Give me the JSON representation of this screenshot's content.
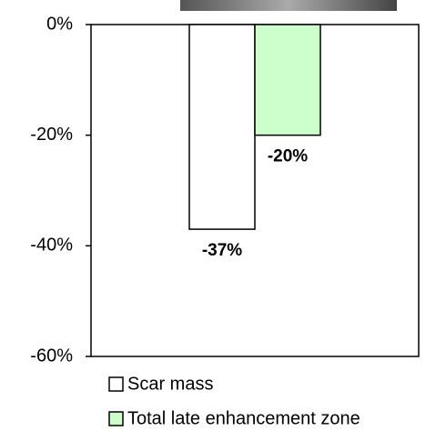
{
  "chart_data": {
    "type": "bar",
    "categories": [
      null
    ],
    "series": [
      {
        "name": "Scar mass",
        "color": "#ffffff",
        "values": [
          -37
        ],
        "value_labels": [
          "-37%"
        ]
      },
      {
        "name": "Total late enhancement zone",
        "color": "#ccffcc",
        "values": [
          -20
        ],
        "value_labels": [
          "-20%"
        ]
      }
    ],
    "ylim": [
      -60,
      0
    ],
    "yticks": [
      {
        "value": 0,
        "label": "0%"
      },
      {
        "value": -20,
        "label": "-20%"
      },
      {
        "value": -40,
        "label": "-40%"
      },
      {
        "value": -60,
        "label": "-60%"
      }
    ],
    "grid": false,
    "legend": "bottom"
  }
}
